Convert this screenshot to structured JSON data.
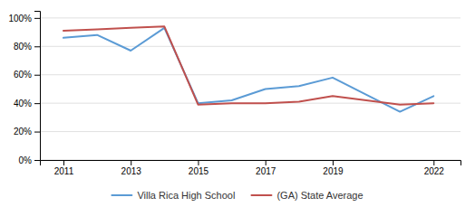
{
  "chart_data": {
    "type": "line",
    "x": [
      2011,
      2012,
      2013,
      2014,
      2015,
      2016,
      2017,
      2018,
      2019,
      2021,
      2022
    ],
    "series": [
      {
        "name": "Villa Rica High School",
        "color": "#5b9bd5",
        "values": [
          0.86,
          0.88,
          0.77,
          0.93,
          0.4,
          0.42,
          0.5,
          0.52,
          0.58,
          0.34,
          0.45
        ]
      },
      {
        "name": "(GA) State Average",
        "color": "#c0504d",
        "values": [
          0.91,
          0.92,
          0.93,
          0.94,
          0.39,
          0.4,
          0.4,
          0.41,
          0.45,
          0.39,
          0.4
        ]
      }
    ],
    "xlim": [
      2010.3,
      2022.8
    ],
    "xticks": [
      2011,
      2013,
      2015,
      2017,
      2019,
      2022
    ],
    "ylim": [
      0,
      1.05
    ],
    "yticks": [
      {
        "value": 0,
        "label": "0%"
      },
      {
        "value": 0.2,
        "label": "20%"
      },
      {
        "value": 0.4,
        "label": "40%"
      },
      {
        "value": 0.6,
        "label": "60%"
      },
      {
        "value": 0.8,
        "label": "80%"
      },
      {
        "value": 1.0,
        "label": "100%"
      }
    ],
    "grid": true,
    "legend": "bottom"
  }
}
